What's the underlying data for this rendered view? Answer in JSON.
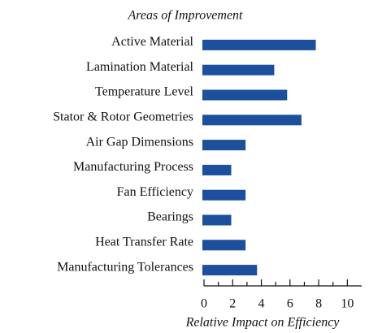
{
  "chart_data": {
    "type": "bar",
    "orientation": "horizontal",
    "title": "Areas of Improvement",
    "x_label": "Relative Impact on Efficiency",
    "categories": [
      "Active Material",
      "Lamination Material",
      "Temperature Level",
      "Stator & Rotor Geometries",
      "Air Gap Dimensions",
      "Manufacturing Process",
      "Fan Efficiency",
      "Bearings",
      "Heat Transfer Rate",
      "Manufacturing Tolerances"
    ],
    "values": [
      7.8,
      4.9,
      5.8,
      6.8,
      2.9,
      1.9,
      2.9,
      1.9,
      2.9,
      3.7
    ],
    "color": "#1c4f9c",
    "xlim": [
      0,
      11
    ],
    "xticks": [
      0,
      2,
      4,
      6,
      8,
      10
    ],
    "xminorticks": [
      1,
      3,
      5,
      7,
      9
    ],
    "grid": false
  }
}
